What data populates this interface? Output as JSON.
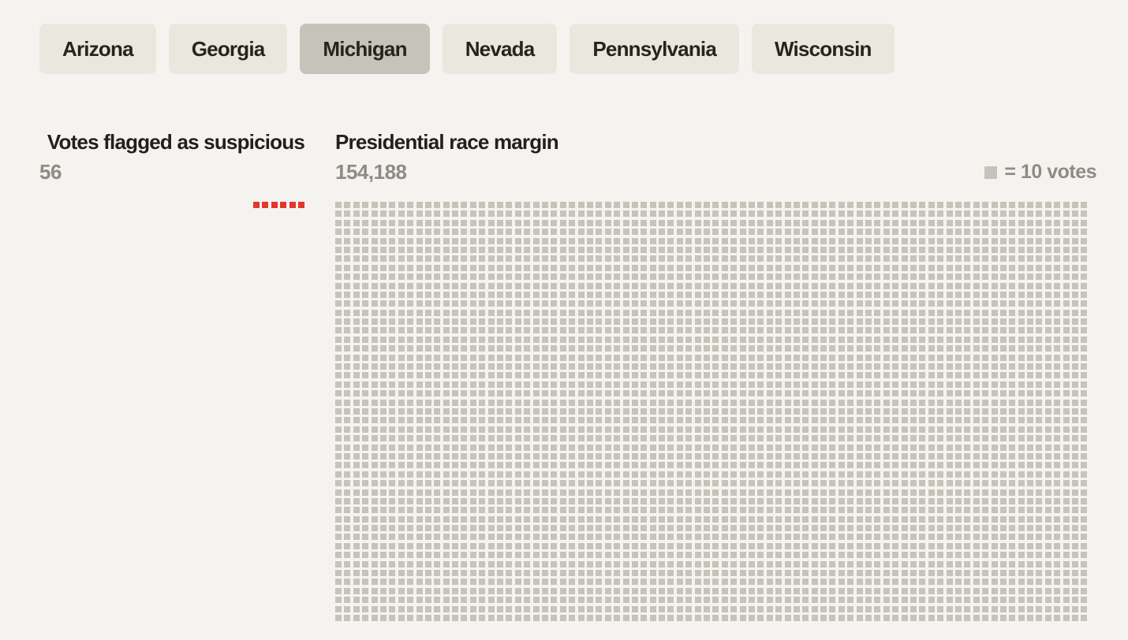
{
  "tabs": {
    "items": [
      {
        "label": "Arizona",
        "selected": false
      },
      {
        "label": "Georgia",
        "selected": false
      },
      {
        "label": "Michigan",
        "selected": true
      },
      {
        "label": "Nevada",
        "selected": false
      },
      {
        "label": "Pennsylvania",
        "selected": false
      },
      {
        "label": "Wisconsin",
        "selected": false
      }
    ]
  },
  "panels": {
    "flagged": {
      "title": "Votes flagged as suspicious",
      "value": "56"
    },
    "margin": {
      "title": "Presidential race margin",
      "value": "154,188"
    }
  },
  "legend": {
    "label": "= 10 votes"
  },
  "colors": {
    "background": "#f4f3ef",
    "tab_background": "#eae7df",
    "tab_selected_background": "#c5c4ba",
    "heading_text": "#21201b",
    "value_text": "#8d8c84",
    "flagged_square": "#e2382b",
    "unit_square": "#c5c4ba"
  },
  "chart_data": {
    "type": "waffle",
    "title_left": "Votes flagged as suspicious",
    "title_right": "Presidential race margin",
    "state_selected": "Michigan",
    "votes_per_square": 10,
    "legend_label": "= 10 votes",
    "series": [
      {
        "name": "Votes flagged as suspicious",
        "value": 56,
        "display_value": "56",
        "squares": 6,
        "squares_rendered": 6,
        "color": "#e2382b"
      },
      {
        "name": "Presidential race margin",
        "value": 154188,
        "display_value": "154,188",
        "squares": 15419,
        "squares_rendered": 3948,
        "columns": 84,
        "rows_visible": 47,
        "truncated_by_viewport": true,
        "color": "#c5c4ba"
      }
    ]
  }
}
